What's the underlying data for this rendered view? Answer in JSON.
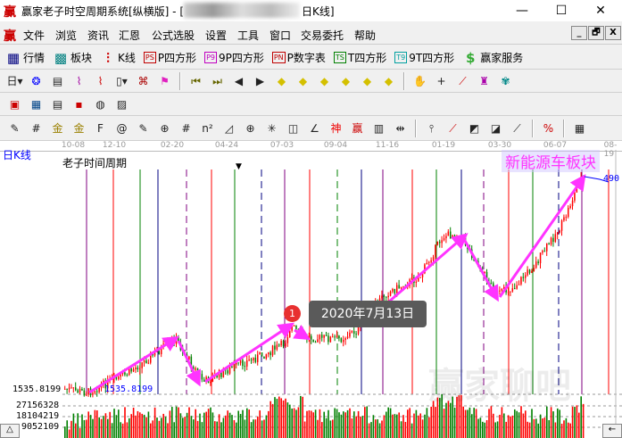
{
  "window": {
    "logo": "赢",
    "title": "赢家老子时空周期系统[纵横版] - [",
    "title_suffix": "日K线]",
    "min": "—",
    "max": "☐",
    "close": "✕"
  },
  "menu": [
    "文件",
    "浏览",
    "资讯",
    "汇恩",
    "公式选股",
    "设置",
    "工具",
    "窗口",
    "交易委托",
    "帮助"
  ],
  "mdi": [
    "_",
    "🗗",
    "X"
  ],
  "toolbar1": [
    {
      "icon": "market-table-icon",
      "label": "行情"
    },
    {
      "icon": "sector-blocks-icon",
      "label": "板块"
    },
    {
      "icon": "candlestick-icon",
      "label": "K线"
    },
    {
      "icon": "ps-icon",
      "badge": "PS",
      "color": "#c00000",
      "label": "P四方形"
    },
    {
      "icon": "p9-icon",
      "badge": "P9",
      "color": "#c000c0",
      "label": "9P四方形"
    },
    {
      "icon": "pn-icon",
      "badge": "PN",
      "color": "#c00000",
      "label": "P数字表"
    },
    {
      "icon": "ts-icon",
      "badge": "TS",
      "color": "#008000",
      "label": "T四方形"
    },
    {
      "icon": "t9-icon",
      "badge": "T9",
      "color": "#00a0a0",
      "label": "9T四方形"
    },
    {
      "icon": "dollar-icon",
      "label": "赢家服务"
    }
  ],
  "toolbar2": [
    "period-dropdown-icon",
    "cycle-icon",
    "clipboard-icon",
    "chart3-icon",
    "chart9-icon",
    "candle-dropdown-icon",
    "map-icon",
    "flag-icon",
    "first-icon",
    "last-icon",
    "prev-icon",
    "next-icon",
    "left-diamond-icon",
    "right-diamond-icon",
    "expand-h-icon",
    "shrink-icon",
    "collapse-icon",
    "expand-v-icon",
    "hand-icon",
    "crosshair-icon",
    "line-tool-icon",
    "chip-icon",
    "pattern-icon"
  ],
  "toolbar3": [
    "calendar-icon",
    "calculator-icon",
    "notes-icon",
    "save-icon",
    "globe-icon",
    "export-icon"
  ],
  "toolbar4": [
    "pencil-icon",
    "grid-icon",
    "gold-icon",
    "gold2-icon",
    "f-icon",
    "spiral-icon",
    "pencil2-icon",
    "circle-grid-icon",
    "hash-icon",
    "n2-icon",
    "triangle-icon",
    "target-icon",
    "web-icon",
    "square-spiral-icon",
    "angle-icon",
    "shen-icon",
    "ying-icon",
    "ruler-icon",
    "range-icon",
    "fork-icon",
    "fan-icon",
    "box-fan-icon",
    "box-fan2-icon",
    "gann-fan-icon",
    "percent-icon",
    "color-grid-icon"
  ],
  "chart": {
    "period_label": "日K线",
    "indicator_title": "老子时间周期",
    "sector_label": "新能源车板块",
    "price_right": "490",
    "low_price": "1535.8199",
    "low_price_marker": "1535.8199",
    "dates": [
      "10-08",
      "12-10",
      "02-20",
      "04-24",
      "07-03",
      "09-04",
      "11-16",
      "01-19",
      "03-30",
      "06-07",
      "08-19"
    ],
    "volume_labels": [
      "27156328",
      "18104219",
      "9052109"
    ],
    "annotation": {
      "number": "1",
      "text": "2020年7月13日"
    },
    "watermark": "赢家聊吧",
    "colors": {
      "up": "#ff0000",
      "down": "#008000",
      "arrow": "#ff33ff",
      "tooltip_bg": "#5a5a5a",
      "marker": "#e83030"
    },
    "scroll_left": "△",
    "scroll_right": "←"
  }
}
